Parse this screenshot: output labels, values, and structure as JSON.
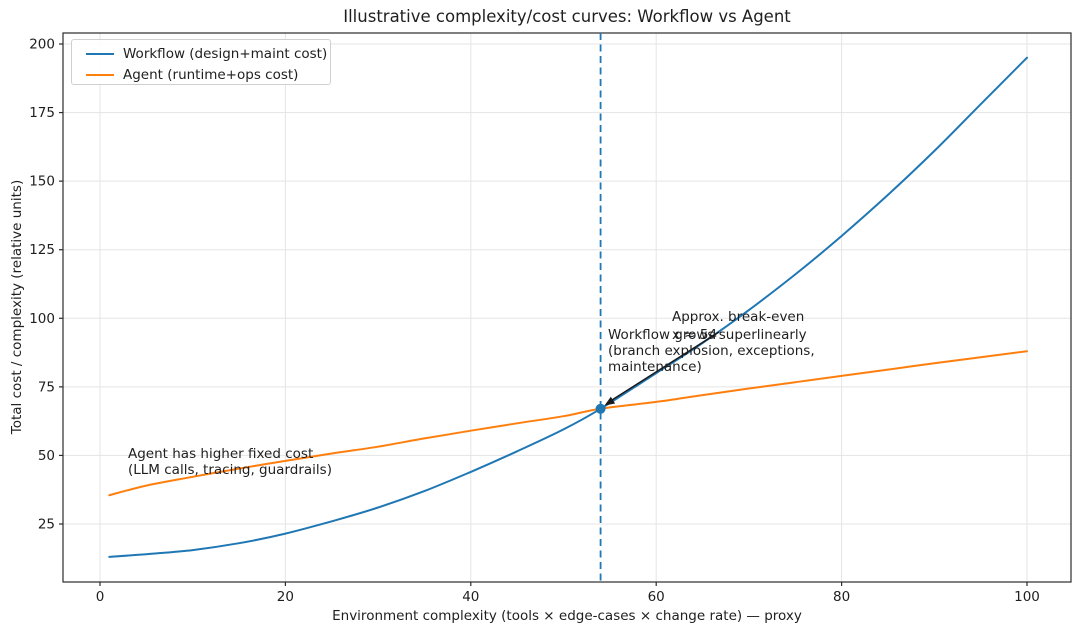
{
  "chart_data": {
    "type": "line",
    "title": "Illustrative complexity/cost curves: Workflow vs Agent",
    "xlabel": "Environment complexity (tools × edge-cases × change rate) — proxy",
    "ylabel": "Total cost / complexity (relative units)",
    "xlim": [
      -4,
      104.5
    ],
    "ylim": [
      4,
      204
    ],
    "xticks": [
      0,
      20,
      40,
      60,
      80,
      100
    ],
    "yticks": [
      25,
      50,
      75,
      100,
      125,
      150,
      175,
      200
    ],
    "grid": true,
    "legend_position": "upper left",
    "x": [
      1,
      5,
      10,
      15,
      20,
      25,
      30,
      35,
      40,
      45,
      50,
      54,
      60,
      65,
      70,
      75,
      80,
      85,
      90,
      95,
      100
    ],
    "series": [
      {
        "name": "Workflow (design+maint cost)",
        "color": "#1f77b4",
        "values": [
          13,
          14,
          15.5,
          18,
          21.5,
          26,
          31,
          37,
          44,
          51.5,
          59.5,
          67,
          80,
          91,
          103,
          116,
          130,
          145,
          161,
          178,
          195
        ]
      },
      {
        "name": "Agent (runtime+ops cost)",
        "color": "#ff7f0e",
        "values": [
          35.5,
          39,
          42.2,
          45.2,
          48,
          50.7,
          53.2,
          56.2,
          59,
          61.7,
          64.3,
          67,
          69.5,
          72,
          74.4,
          76.7,
          79,
          81.3,
          83.6,
          85.8,
          88
        ]
      }
    ],
    "breakeven": {
      "x": 54,
      "y": 67,
      "marker_color": "#1f77b4",
      "vline_color": "#1f77b4",
      "vline_style": "dashed"
    },
    "annotations": [
      {
        "id": "breakeven-label",
        "lines": [
          "Approx. break-even",
          "x ≈ 54"
        ],
        "arrow": true
      },
      {
        "id": "workflow-note",
        "lines": [
          "Workflow grows superlinearly",
          "(branch explosion, exceptions,",
          "maintenance)"
        ],
        "arrow": false
      },
      {
        "id": "agent-note",
        "lines": [
          "Agent has higher fixed cost",
          "(LLM calls, tracing, guardrails)"
        ],
        "arrow": false
      }
    ]
  }
}
